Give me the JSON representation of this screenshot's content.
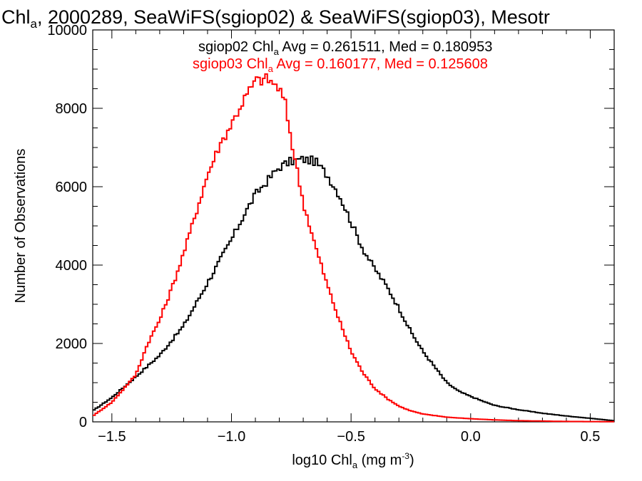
{
  "chart_data": {
    "type": "line",
    "title_parts": [
      "Chl",
      "a",
      ", 2000289, SeaWiFS(sgiop02) & SeaWiFS(sgiop03), Mesotr"
    ],
    "xlabel_parts": [
      "log10 Chl",
      "a",
      " (mg m",
      "-3",
      ")"
    ],
    "ylabel": "Number of Observations",
    "xlim": [
      -1.58,
      0.6
    ],
    "ylim": [
      0,
      10000
    ],
    "x_ticks": [
      -1.5,
      -1.0,
      -0.5,
      0.0,
      0.5
    ],
    "x_tick_labels": [
      "−1.5",
      "−1.0",
      "−0.5",
      "0.0",
      "0.5"
    ],
    "y_ticks": [
      0,
      2000,
      4000,
      6000,
      8000,
      10000
    ],
    "y_tick_labels": [
      "0",
      "2000",
      "4000",
      "6000",
      "8000",
      "10000"
    ],
    "grid": false,
    "legend_position": "top-right",
    "series": [
      {
        "name_parts": [
          "sgiop02 Chl",
          "a",
          " Avg = 0.261511, Med = 0.180953"
        ],
        "color": "#000000",
        "points": [
          [
            -1.58,
            280
          ],
          [
            -1.5,
            620
          ],
          [
            -1.4,
            1150
          ],
          [
            -1.3,
            1700
          ],
          [
            -1.2,
            2450
          ],
          [
            -1.1,
            3550
          ],
          [
            -1.0,
            4650
          ],
          [
            -0.95,
            5250
          ],
          [
            -0.9,
            5800
          ],
          [
            -0.85,
            6150
          ],
          [
            -0.8,
            6500
          ],
          [
            -0.75,
            6650
          ],
          [
            -0.7,
            6700
          ],
          [
            -0.65,
            6650
          ],
          [
            -0.6,
            6300
          ],
          [
            -0.55,
            5800
          ],
          [
            -0.5,
            5100
          ],
          [
            -0.45,
            4400
          ],
          [
            -0.4,
            3900
          ],
          [
            -0.35,
            3450
          ],
          [
            -0.3,
            2900
          ],
          [
            -0.25,
            2300
          ],
          [
            -0.2,
            1800
          ],
          [
            -0.15,
            1400
          ],
          [
            -0.1,
            1000
          ],
          [
            -0.05,
            780
          ],
          [
            0.0,
            650
          ],
          [
            0.05,
            530
          ],
          [
            0.1,
            420
          ],
          [
            0.2,
            310
          ],
          [
            0.3,
            220
          ],
          [
            0.4,
            150
          ],
          [
            0.5,
            90
          ],
          [
            0.6,
            30
          ]
        ]
      },
      {
        "name_parts": [
          "sgiop03 Chl",
          "a",
          " Avg = 0.160177, Med = 0.125608"
        ],
        "color": "#ff0000",
        "points": [
          [
            -1.58,
            150
          ],
          [
            -1.5,
            500
          ],
          [
            -1.4,
            1200
          ],
          [
            -1.35,
            2000
          ],
          [
            -1.3,
            2600
          ],
          [
            -1.25,
            3400
          ],
          [
            -1.2,
            4300
          ],
          [
            -1.15,
            5300
          ],
          [
            -1.1,
            6300
          ],
          [
            -1.05,
            7050
          ],
          [
            -1.0,
            7600
          ],
          [
            -0.95,
            8200
          ],
          [
            -0.9,
            8700
          ],
          [
            -0.85,
            8750
          ],
          [
            -0.8,
            8500
          ],
          [
            -0.775,
            8100
          ],
          [
            -0.75,
            7200
          ],
          [
            -0.725,
            6400
          ],
          [
            -0.7,
            5600
          ],
          [
            -0.65,
            4500
          ],
          [
            -0.6,
            3500
          ],
          [
            -0.55,
            2600
          ],
          [
            -0.5,
            1800
          ],
          [
            -0.45,
            1250
          ],
          [
            -0.4,
            850
          ],
          [
            -0.35,
            600
          ],
          [
            -0.3,
            400
          ],
          [
            -0.25,
            280
          ],
          [
            -0.2,
            200
          ],
          [
            -0.1,
            120
          ],
          [
            0.0,
            80
          ],
          [
            0.1,
            50
          ],
          [
            0.2,
            30
          ],
          [
            0.4,
            10
          ],
          [
            0.6,
            5
          ]
        ]
      }
    ]
  }
}
